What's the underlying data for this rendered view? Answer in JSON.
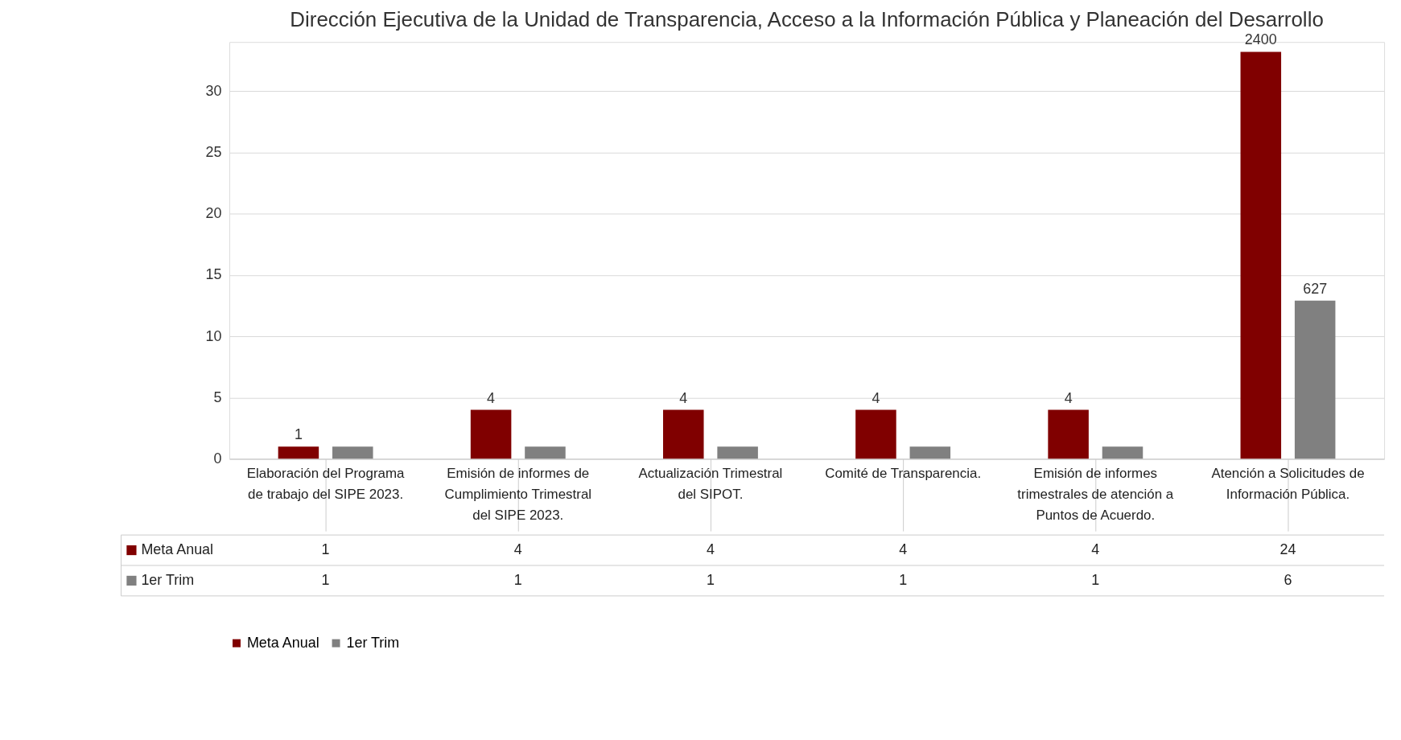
{
  "chart_data": {
    "type": "bar",
    "title": "Dirección Ejecutiva de la Unidad de Transparencia, Acceso a la Información Pública y Planeación del Desarrollo",
    "categories": [
      "Elaboración del Programa de trabajo del SIPE 2023.",
      "Emisión de informes de Cumplimiento Trimestral del SIPE 2023.",
      "Actualización Trimestral del SIPOT.",
      "Comité de Transparencia.",
      "Emisión de informes trimestrales de atención a Puntos de Acuerdo.",
      "Atención a Solicitudes de Información Pública."
    ],
    "series": [
      {
        "name": "Meta Anual",
        "color": "#800000",
        "values": [
          1,
          4,
          4,
          4,
          4,
          33.2
        ],
        "value_labels": [
          "1",
          "4",
          "4",
          "4",
          "4",
          null
        ]
      },
      {
        "name": "1er Trim",
        "color": "#808080",
        "values": [
          1,
          1,
          1,
          1,
          1,
          12.9
        ],
        "value_labels": [
          null,
          null,
          null,
          null,
          null,
          null
        ]
      }
    ],
    "annotations": [
      "1",
      "4",
      "4",
      "4",
      "4",
      "24",
      "1",
      "1",
      "1",
      "1",
      "1",
      "6",
      "2400",
      "627"
    ],
    "ylim": [
      0,
      34
    ],
    "yticks": [
      0,
      5,
      10,
      15,
      20,
      25,
      30
    ],
    "grid": "y",
    "legend": "bottom"
  }
}
